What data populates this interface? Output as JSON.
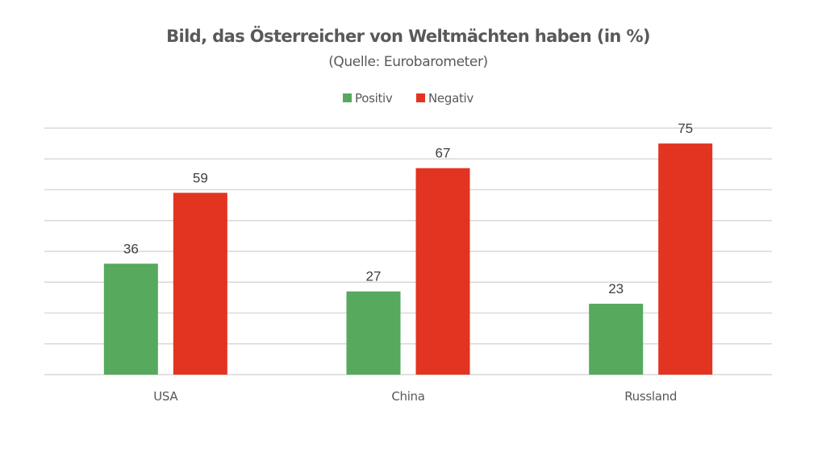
{
  "chart_data": {
    "type": "bar",
    "title": "Bild, das Österreicher von Weltmächten haben (in %)",
    "subtitle": "(Quelle: Eurobarometer)",
    "categories": [
      "USA",
      "China",
      "Russland"
    ],
    "series": [
      {
        "name": "Positiv",
        "color": "#56a95d",
        "values": [
          36,
          27,
          23
        ]
      },
      {
        "name": "Negativ",
        "color": "#e33321",
        "values": [
          59,
          67,
          75
        ]
      }
    ],
    "xlabel": "",
    "ylabel": "",
    "ylim": [
      0,
      80
    ],
    "ytick_step": 10,
    "grid": true,
    "legend_position": "top-center"
  }
}
